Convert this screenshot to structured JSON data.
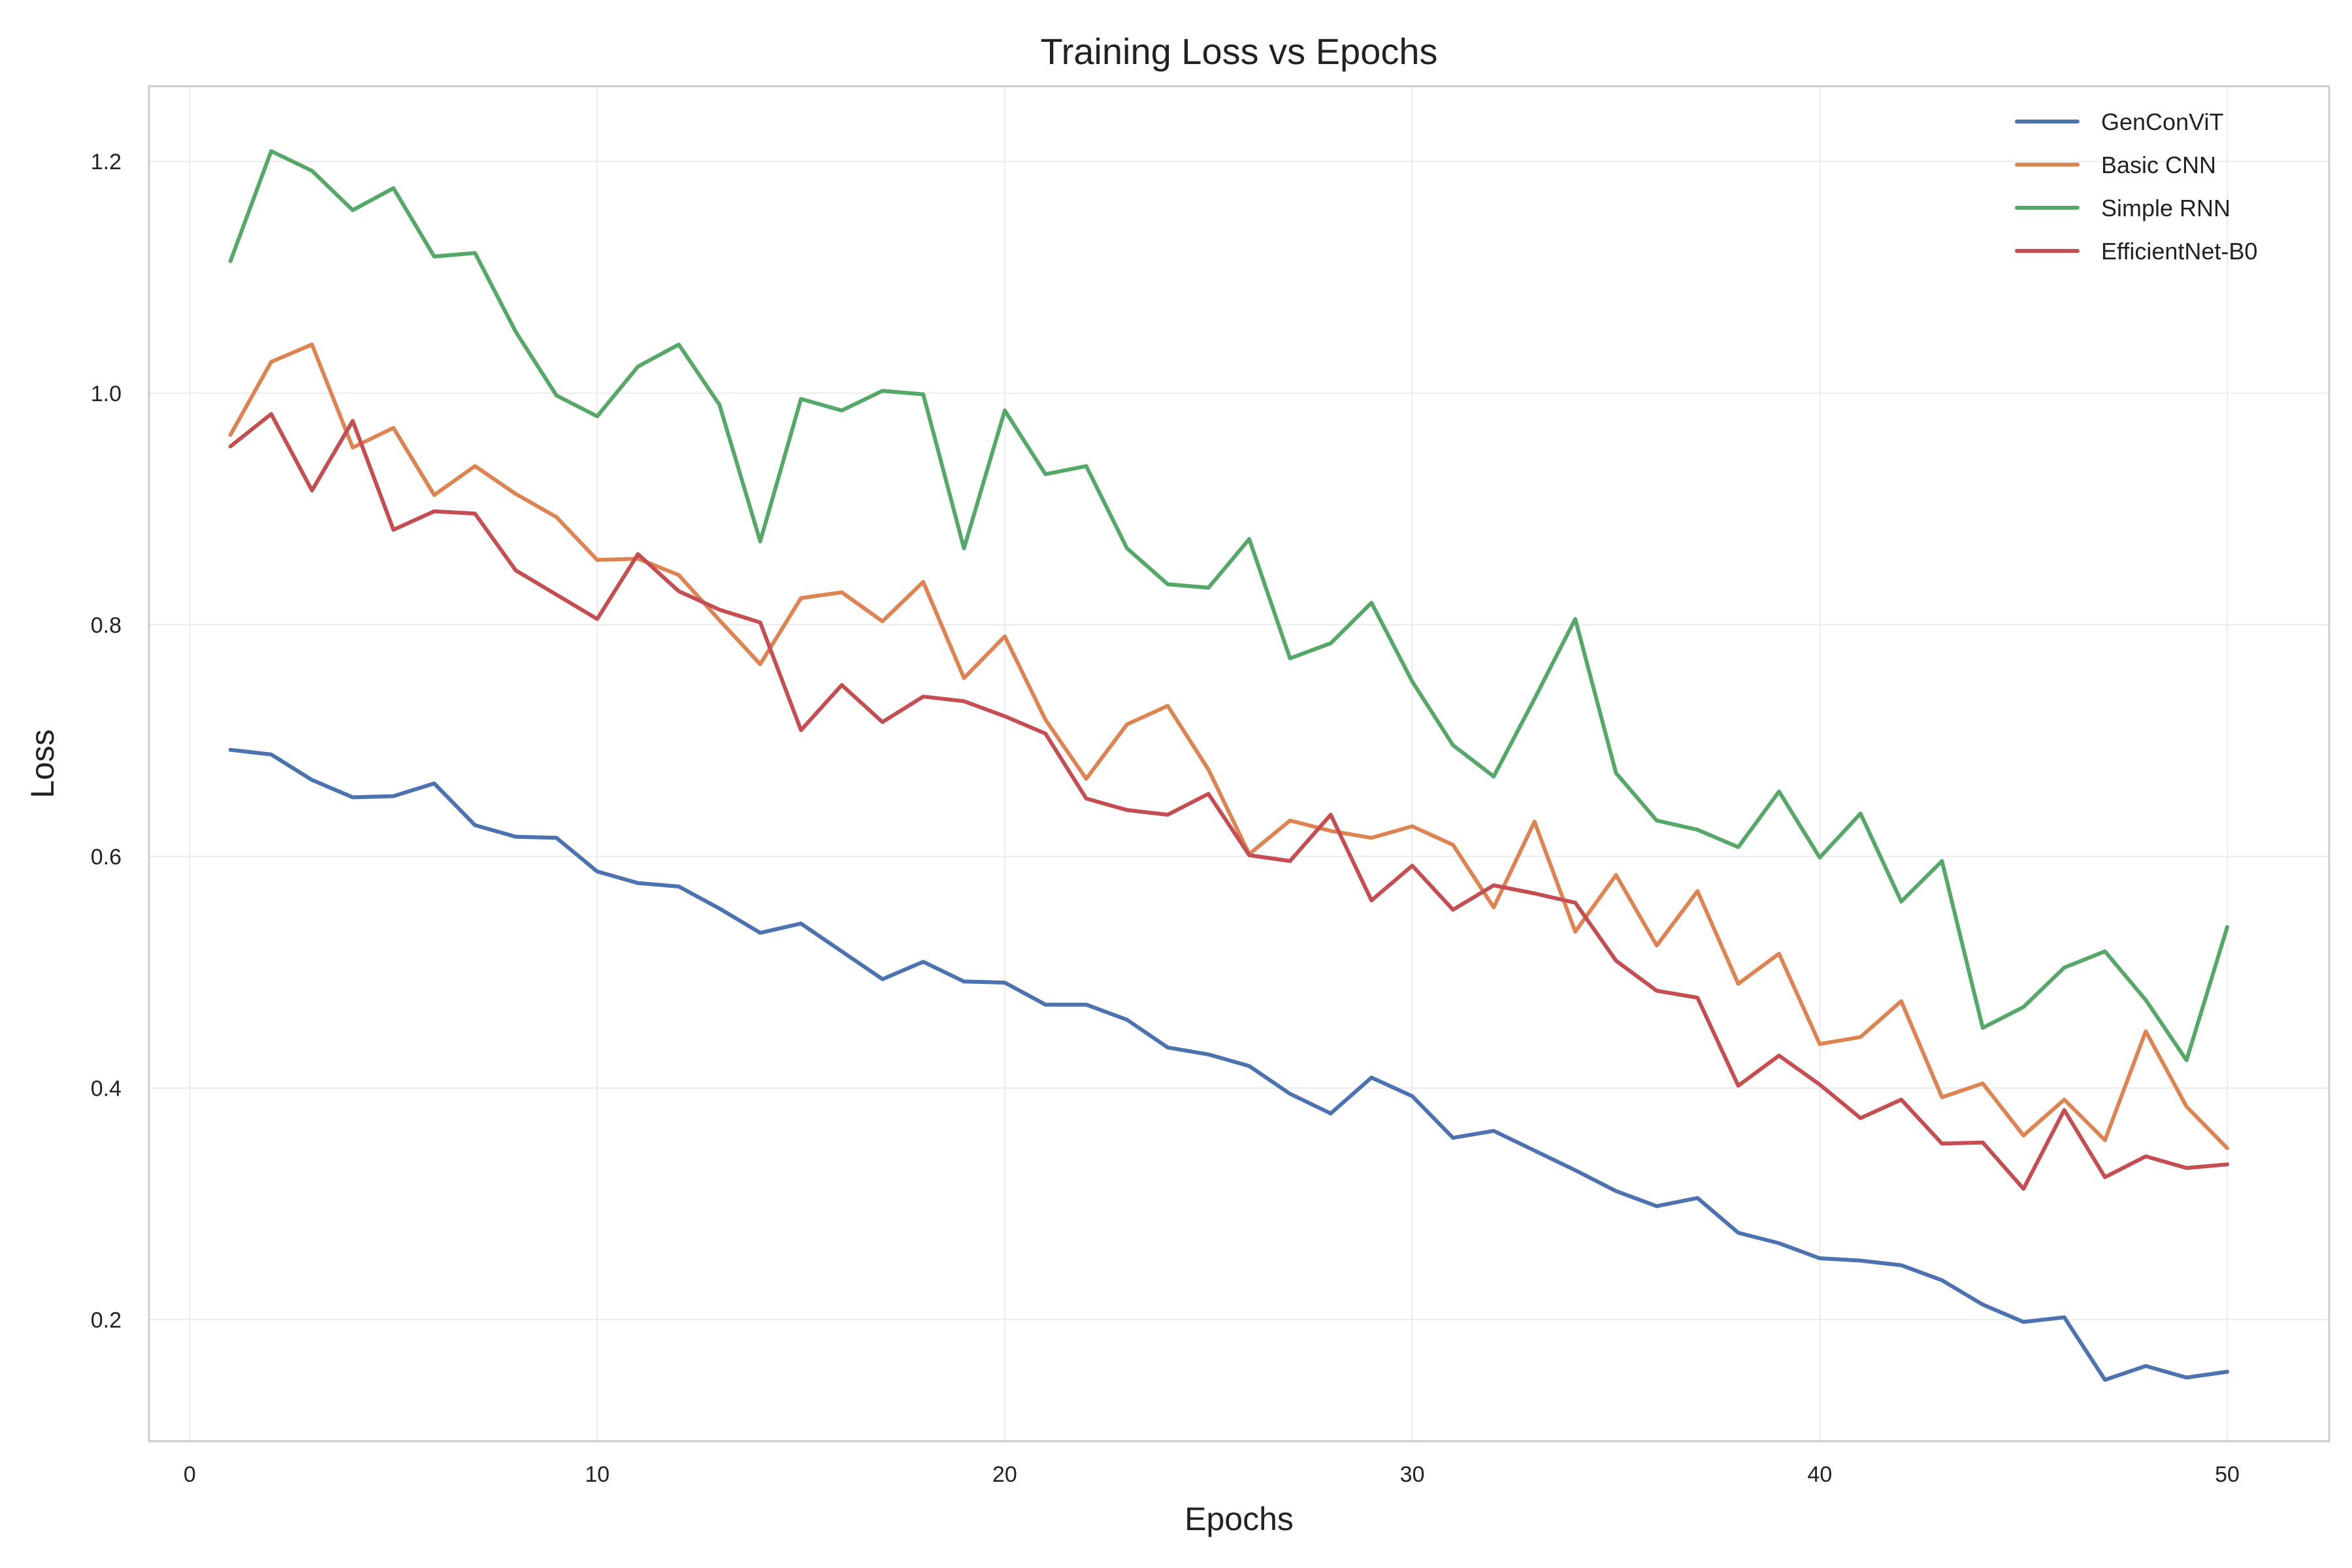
{
  "chart_data": {
    "type": "line",
    "title": "Training Loss vs Epochs",
    "xlabel": "Epochs",
    "ylabel": "Loss",
    "xlim": [
      -1,
      52.5
    ],
    "ylim": [
      0.095,
      1.265
    ],
    "xticks": [
      0,
      10,
      20,
      30,
      40,
      50
    ],
    "yticks": [
      0.2,
      0.4,
      0.6,
      0.8,
      1.0,
      1.2
    ],
    "grid": true,
    "legend_position": "top-right",
    "x": [
      1,
      2,
      3,
      4,
      5,
      6,
      7,
      8,
      9,
      10,
      11,
      12,
      13,
      14,
      15,
      16,
      17,
      18,
      19,
      20,
      21,
      22,
      23,
      24,
      25,
      26,
      27,
      28,
      29,
      30,
      31,
      32,
      33,
      34,
      35,
      36,
      37,
      38,
      39,
      40,
      41,
      42,
      43,
      44,
      45,
      46,
      47,
      48,
      49,
      50
    ],
    "series": [
      {
        "name": "GenConViT",
        "color": "#4c72b0",
        "values": [
          0.692,
          0.688,
          0.666,
          0.651,
          0.652,
          0.663,
          0.627,
          0.617,
          0.616,
          0.587,
          0.577,
          0.574,
          0.555,
          0.534,
          0.542,
          0.518,
          0.494,
          0.509,
          0.492,
          0.491,
          0.472,
          0.472,
          0.459,
          0.435,
          0.429,
          0.419,
          0.395,
          0.378,
          0.409,
          0.393,
          0.357,
          0.363,
          0.346,
          0.329,
          0.311,
          0.298,
          0.305,
          0.275,
          0.266,
          0.253,
          0.251,
          0.247,
          0.234,
          0.213,
          0.198,
          0.202,
          0.148,
          0.16,
          0.15,
          0.155
        ]
      },
      {
        "name": "Basic CNN",
        "color": "#dd8452",
        "values": [
          0.964,
          1.027,
          1.042,
          0.953,
          0.97,
          0.912,
          0.937,
          0.913,
          0.893,
          0.856,
          0.857,
          0.843,
          0.804,
          0.766,
          0.823,
          0.828,
          0.803,
          0.837,
          0.754,
          0.79,
          0.718,
          0.667,
          0.714,
          0.73,
          0.675,
          0.602,
          0.631,
          0.622,
          0.616,
          0.626,
          0.61,
          0.556,
          0.63,
          0.535,
          0.584,
          0.523,
          0.57,
          0.49,
          0.516,
          0.438,
          0.444,
          0.475,
          0.392,
          0.404,
          0.359,
          0.39,
          0.355,
          0.449,
          0.384,
          0.348
        ]
      },
      {
        "name": "Simple RNN",
        "color": "#55a868",
        "values": [
          1.114,
          1.209,
          1.192,
          1.158,
          1.177,
          1.118,
          1.121,
          1.053,
          0.998,
          0.98,
          1.023,
          1.042,
          0.99,
          0.872,
          0.995,
          0.985,
          1.002,
          0.999,
          0.866,
          0.985,
          0.93,
          0.937,
          0.866,
          0.835,
          0.832,
          0.874,
          0.771,
          0.784,
          0.819,
          0.751,
          0.696,
          0.669,
          0.736,
          0.805,
          0.672,
          0.631,
          0.623,
          0.608,
          0.656,
          0.599,
          0.637,
          0.561,
          0.596,
          0.452,
          0.47,
          0.504,
          0.518,
          0.476,
          0.424,
          0.539
        ]
      },
      {
        "name": "EfficientNet-B0",
        "color": "#c44e52",
        "values": [
          0.954,
          0.982,
          0.916,
          0.976,
          0.882,
          0.898,
          0.896,
          0.847,
          0.826,
          0.805,
          0.861,
          0.829,
          0.813,
          0.802,
          0.709,
          0.748,
          0.716,
          0.738,
          0.734,
          0.721,
          0.706,
          0.65,
          0.64,
          0.636,
          0.654,
          0.601,
          0.596,
          0.636,
          0.562,
          0.592,
          0.554,
          0.575,
          0.568,
          0.56,
          0.51,
          0.484,
          0.478,
          0.402,
          0.428,
          0.403,
          0.374,
          0.39,
          0.352,
          0.353,
          0.313,
          0.381,
          0.323,
          0.341,
          0.331,
          0.334
        ]
      }
    ]
  }
}
